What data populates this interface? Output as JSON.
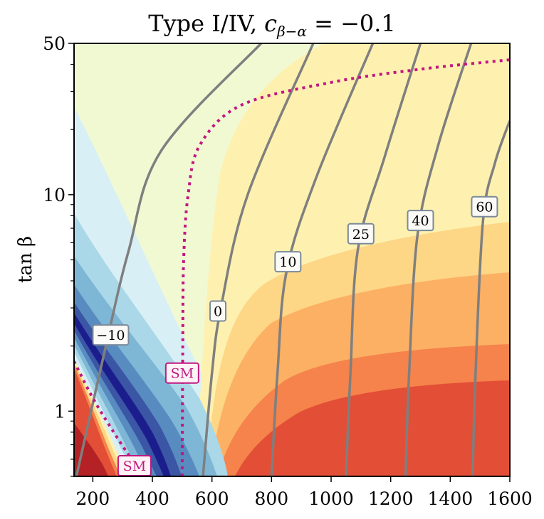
{
  "chart_data": {
    "type": "contour",
    "title_main": "Type I/IV, ",
    "title_math": "c",
    "title_sub": "β−α",
    "title_rest": " = −0.1",
    "xlabel": "",
    "ylabel": "tan β",
    "xlim": [
      137,
      1600
    ],
    "ylim": [
      0.5,
      50
    ],
    "yscale": "log",
    "xticks": [
      200,
      400,
      600,
      800,
      1000,
      1200,
      1400,
      1600
    ],
    "xtick_labels": [
      "200",
      "400",
      "600",
      "800",
      "1000",
      "1200",
      "1400",
      "1600"
    ],
    "yticks_major": [
      1,
      10,
      50
    ],
    "ytick_labels": [
      "1",
      "10",
      "50"
    ],
    "yticks_minor": [
      0.5,
      0.6,
      0.7,
      0.8,
      0.9,
      2,
      3,
      4,
      5,
      6,
      7,
      8,
      9,
      20,
      30,
      40
    ],
    "filled_regions": [
      {
        "name": "pale-green",
        "color": "#f1f9d3"
      },
      {
        "name": "pale-yellow",
        "color": "#fef1b0"
      },
      {
        "name": "light-orange",
        "color": "#fdd686"
      },
      {
        "name": "orange",
        "color": "#fcb064"
      },
      {
        "name": "dark-orange",
        "color": "#f5834b"
      },
      {
        "name": "red",
        "color": "#e34e36"
      },
      {
        "name": "dark-red",
        "color": "#b52226"
      },
      {
        "name": "pale-blue",
        "color": "#d9eff6"
      },
      {
        "name": "light-blue",
        "color": "#abd8e8"
      },
      {
        "name": "mid-blue",
        "color": "#7eb6d6"
      },
      {
        "name": "blue",
        "color": "#588cc0"
      },
      {
        "name": "deep-blue",
        "color": "#3a56a5"
      },
      {
        "name": "navy",
        "color": "#1c1d8c"
      }
    ],
    "contours": [
      {
        "label": "−10",
        "points": [
          [
            145,
            0.5
          ],
          [
            240,
            1.9
          ],
          [
            320,
            5.5
          ],
          [
            430,
            16
          ],
          [
            765,
            50
          ]
        ]
      },
      {
        "label": "0",
        "points": [
          [
            570,
            0.5
          ],
          [
            600,
            1.5
          ],
          [
            630,
            3.0
          ],
          [
            720,
            10
          ],
          [
            940,
            50
          ]
        ]
      },
      {
        "label": "10",
        "points": [
          [
            800,
            0.5
          ],
          [
            820,
            1.5
          ],
          [
            850,
            4.4
          ],
          [
            950,
            12
          ],
          [
            1140,
            50
          ]
        ]
      },
      {
        "label": "25",
        "points": [
          [
            1050,
            0.5
          ],
          [
            1065,
            1.5
          ],
          [
            1090,
            5.6
          ],
          [
            1180,
            15
          ],
          [
            1300,
            50
          ]
        ]
      },
      {
        "label": "40",
        "points": [
          [
            1250,
            0.5
          ],
          [
            1262,
            1.5
          ],
          [
            1290,
            6.5
          ],
          [
            1360,
            17
          ],
          [
            1470,
            50
          ]
        ]
      },
      {
        "label": "60",
        "points": [
          [
            1475,
            0.5
          ],
          [
            1485,
            1.5
          ],
          [
            1510,
            7.6
          ],
          [
            1550,
            14
          ],
          [
            1600,
            22
          ]
        ]
      }
    ],
    "contour_labels": [
      {
        "text": "−10",
        "x": 260,
        "y": 2.25
      },
      {
        "text": "0",
        "x": 620,
        "y": 2.9
      },
      {
        "text": "10",
        "x": 855,
        "y": 4.9
      },
      {
        "text": "25",
        "x": 1100,
        "y": 6.6
      },
      {
        "text": "40",
        "x": 1300,
        "y": 7.6
      },
      {
        "text": "60",
        "x": 1515,
        "y": 8.8
      }
    ],
    "sm_lines": [
      {
        "label": "SM",
        "points": [
          [
            500,
            0.5
          ],
          [
            502,
            2.0
          ],
          [
            505,
            5
          ],
          [
            520,
            10
          ],
          [
            560,
            17
          ],
          [
            700,
            26
          ],
          [
            1000,
            33
          ],
          [
            1300,
            38
          ],
          [
            1600,
            42
          ]
        ]
      },
      {
        "label": "SM",
        "points": [
          [
            137,
            1.7
          ],
          [
            200,
            1.15
          ],
          [
            270,
            0.8
          ],
          [
            330,
            0.6
          ],
          [
            370,
            0.5
          ]
        ]
      }
    ],
    "sm_labels": [
      {
        "text": "SM",
        "x": 500,
        "y": 1.5
      },
      {
        "text": "SM",
        "x": 340,
        "y": 0.56
      }
    ]
  }
}
